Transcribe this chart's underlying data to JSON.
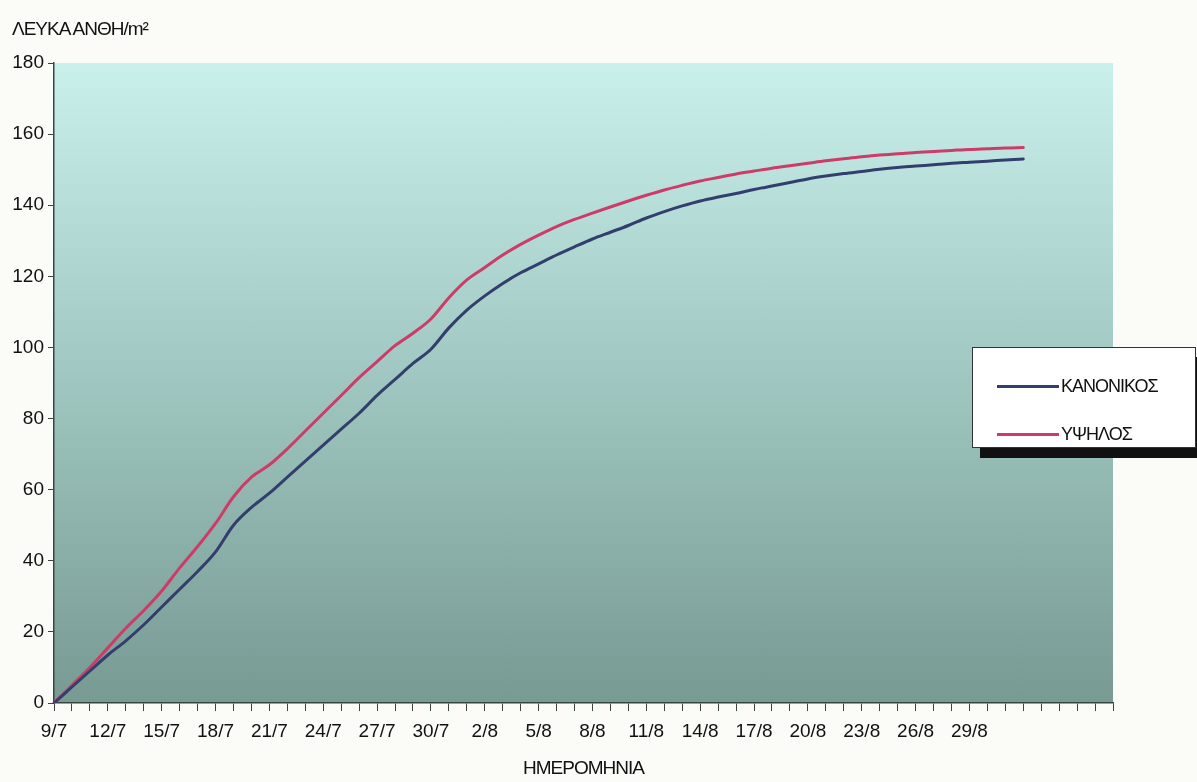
{
  "chart_data": {
    "type": "line",
    "xlabel": "ΗΜΕΡΟΜΗΝΙΑ",
    "ylabel": "ΛΕΥΚΑ ΑΝΘΗ/m²",
    "categories": [
      "9/7",
      null,
      null,
      "12/7",
      null,
      null,
      "15/7",
      null,
      null,
      "18/7",
      null,
      null,
      "21/7",
      null,
      null,
      "24/7",
      null,
      null,
      "27/7",
      null,
      null,
      "30/7",
      null,
      null,
      "2/8",
      null,
      null,
      "5/8",
      null,
      null,
      "8/8",
      null,
      null,
      "11/8",
      null,
      null,
      "14/8",
      null,
      null,
      "17/8",
      null,
      null,
      "20/8",
      null,
      null,
      "23/8",
      null,
      null,
      "26/8",
      null,
      null,
      "29/8",
      null,
      null,
      null,
      null,
      null,
      null,
      null,
      null
    ],
    "series": [
      {
        "name": "ΚΑΝΟΝΙΚΟΣ",
        "color": "#343e6e",
        "values": [
          0,
          4.5,
          9,
          13.5,
          17.5,
          22,
          27,
          32,
          37,
          42.5,
          50,
          55,
          59,
          63.5,
          68,
          72.5,
          77,
          81.5,
          86.5,
          91,
          95.5,
          99.5,
          105.5,
          110.5,
          114.5,
          118,
          121,
          123.5,
          126,
          128.3,
          130.5,
          132.4,
          134.3,
          136.4,
          138.2,
          139.8,
          141.2,
          142.3,
          143.3,
          144.4,
          145.4,
          146.4,
          147.4,
          148.2,
          148.9,
          149.5,
          150.1,
          150.6,
          151,
          151.4,
          151.8,
          152.1,
          152.4,
          152.7,
          153,
          null,
          null,
          null,
          null,
          null
        ]
      },
      {
        "name": "ΥΨΗΛΟΣ",
        "color": "#cd3c69",
        "values": [
          0,
          5,
          10,
          15.5,
          21,
          26,
          31.5,
          38,
          44,
          50.5,
          58,
          63.5,
          67,
          71.5,
          76.5,
          81.5,
          86.5,
          91.5,
          96,
          100.5,
          104,
          108,
          114,
          119,
          122.5,
          126,
          129,
          131.6,
          134,
          136,
          137.8,
          139.5,
          141.2,
          142.8,
          144.3,
          145.6,
          146.8,
          147.8,
          148.8,
          149.6,
          150.4,
          151.1,
          151.8,
          152.5,
          153.1,
          153.6,
          154.1,
          154.5,
          154.8,
          155.1,
          155.4,
          155.7,
          155.9,
          156.1,
          156.2,
          null,
          null,
          null,
          null,
          null
        ]
      }
    ],
    "ylim": [
      0,
      180
    ],
    "yticks": [
      0,
      20,
      40,
      60,
      80,
      100,
      120,
      140,
      160,
      180
    ],
    "grid": false,
    "legend": "right",
    "marker": "none"
  }
}
